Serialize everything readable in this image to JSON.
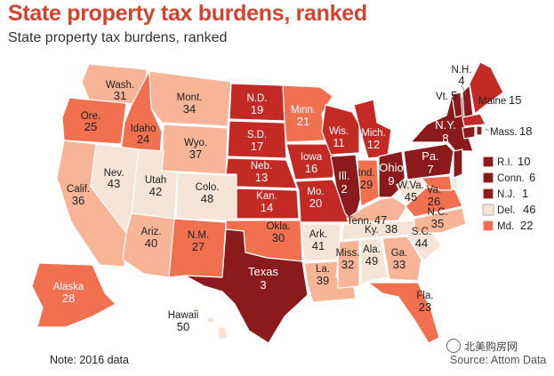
{
  "header": {
    "title": "State property tax burdens, ranked",
    "subtitle": "State property tax burdens, ranked"
  },
  "colors": {
    "rank_1_10": "#8b1a1c",
    "rank_11_20": "#c42a25",
    "rank_21_30": "#f07050",
    "rank_31_40": "#f8b496",
    "rank_41_50": "#f6e4d6"
  },
  "states": {
    "wa": {
      "name": "Wash.",
      "rank": "31"
    },
    "or": {
      "name": "Ore.",
      "rank": "25"
    },
    "ca": {
      "name": "Calif.",
      "rank": "36"
    },
    "id": {
      "name": "Idaho",
      "rank": "24"
    },
    "nv": {
      "name": "Nev.",
      "rank": "43"
    },
    "mt": {
      "name": "Mont.",
      "rank": "34"
    },
    "wy": {
      "name": "Wyo.",
      "rank": "37"
    },
    "ut": {
      "name": "Utah",
      "rank": "42"
    },
    "az": {
      "name": "Ariz.",
      "rank": "40"
    },
    "co": {
      "name": "Colo.",
      "rank": "48"
    },
    "nm": {
      "name": "N.M.",
      "rank": "27"
    },
    "nd": {
      "name": "N.D.",
      "rank": "19"
    },
    "sd": {
      "name": "S.D.",
      "rank": "17"
    },
    "ne": {
      "name": "Neb.",
      "rank": "13"
    },
    "ks": {
      "name": "Kan.",
      "rank": "14"
    },
    "ok": {
      "name": "Okla.",
      "rank": "30"
    },
    "tx": {
      "name": "Texas",
      "rank": "3"
    },
    "mn": {
      "name": "Minn.",
      "rank": "21"
    },
    "ia": {
      "name": "Iowa",
      "rank": "16"
    },
    "mo": {
      "name": "Mo.",
      "rank": "20"
    },
    "ar": {
      "name": "Ark.",
      "rank": "41"
    },
    "la": {
      "name": "La.",
      "rank": "39"
    },
    "wi": {
      "name": "Wis.",
      "rank": "11"
    },
    "il": {
      "name": "Ill.",
      "rank": "2"
    },
    "mi": {
      "name": "Mich.",
      "rank": "12"
    },
    "in": {
      "name": "Ind.",
      "rank": "29"
    },
    "oh": {
      "name": "Ohio",
      "rank": "9"
    },
    "ky": {
      "name": "Ky.",
      "rank": "38"
    },
    "tn": {
      "name": "Tenn.",
      "rank": "47"
    },
    "ms": {
      "name": "Miss.",
      "rank": "32"
    },
    "al": {
      "name": "Ala.",
      "rank": "49"
    },
    "ga": {
      "name": "Ga.",
      "rank": "33"
    },
    "fl": {
      "name": "Fla.",
      "rank": "23"
    },
    "sc": {
      "name": "S.C.",
      "rank": "44"
    },
    "nc": {
      "name": "N.C.",
      "rank": "35"
    },
    "va": {
      "name": "Va.",
      "rank": "26"
    },
    "wv": {
      "name": "W.Va.",
      "rank": "45"
    },
    "pa": {
      "name": "Pa.",
      "rank": "7"
    },
    "ny": {
      "name": "N.Y.",
      "rank": "8"
    },
    "vt": {
      "name": "Vt.",
      "rank": "5"
    },
    "nh": {
      "name": "N.H.",
      "rank": "4"
    },
    "me": {
      "name": "Maine",
      "rank": "15"
    },
    "ma": {
      "name": "Mass.",
      "rank": "18"
    },
    "ri": {
      "name": "R.I.",
      "rank": "10"
    },
    "ct": {
      "name": "Conn.",
      "rank": "6"
    },
    "nj": {
      "name": "N.J.",
      "rank": "1"
    },
    "de": {
      "name": "Del.",
      "rank": "46"
    },
    "md": {
      "name": "Md.",
      "rank": "22"
    },
    "ak": {
      "name": "Alaska",
      "rank": "28"
    },
    "hi": {
      "name": "Hawaii",
      "rank": "50"
    }
  },
  "footer": {
    "note": "Note: 2016 data",
    "source": "Source: Attom Data",
    "watermark": "北美购房网"
  }
}
